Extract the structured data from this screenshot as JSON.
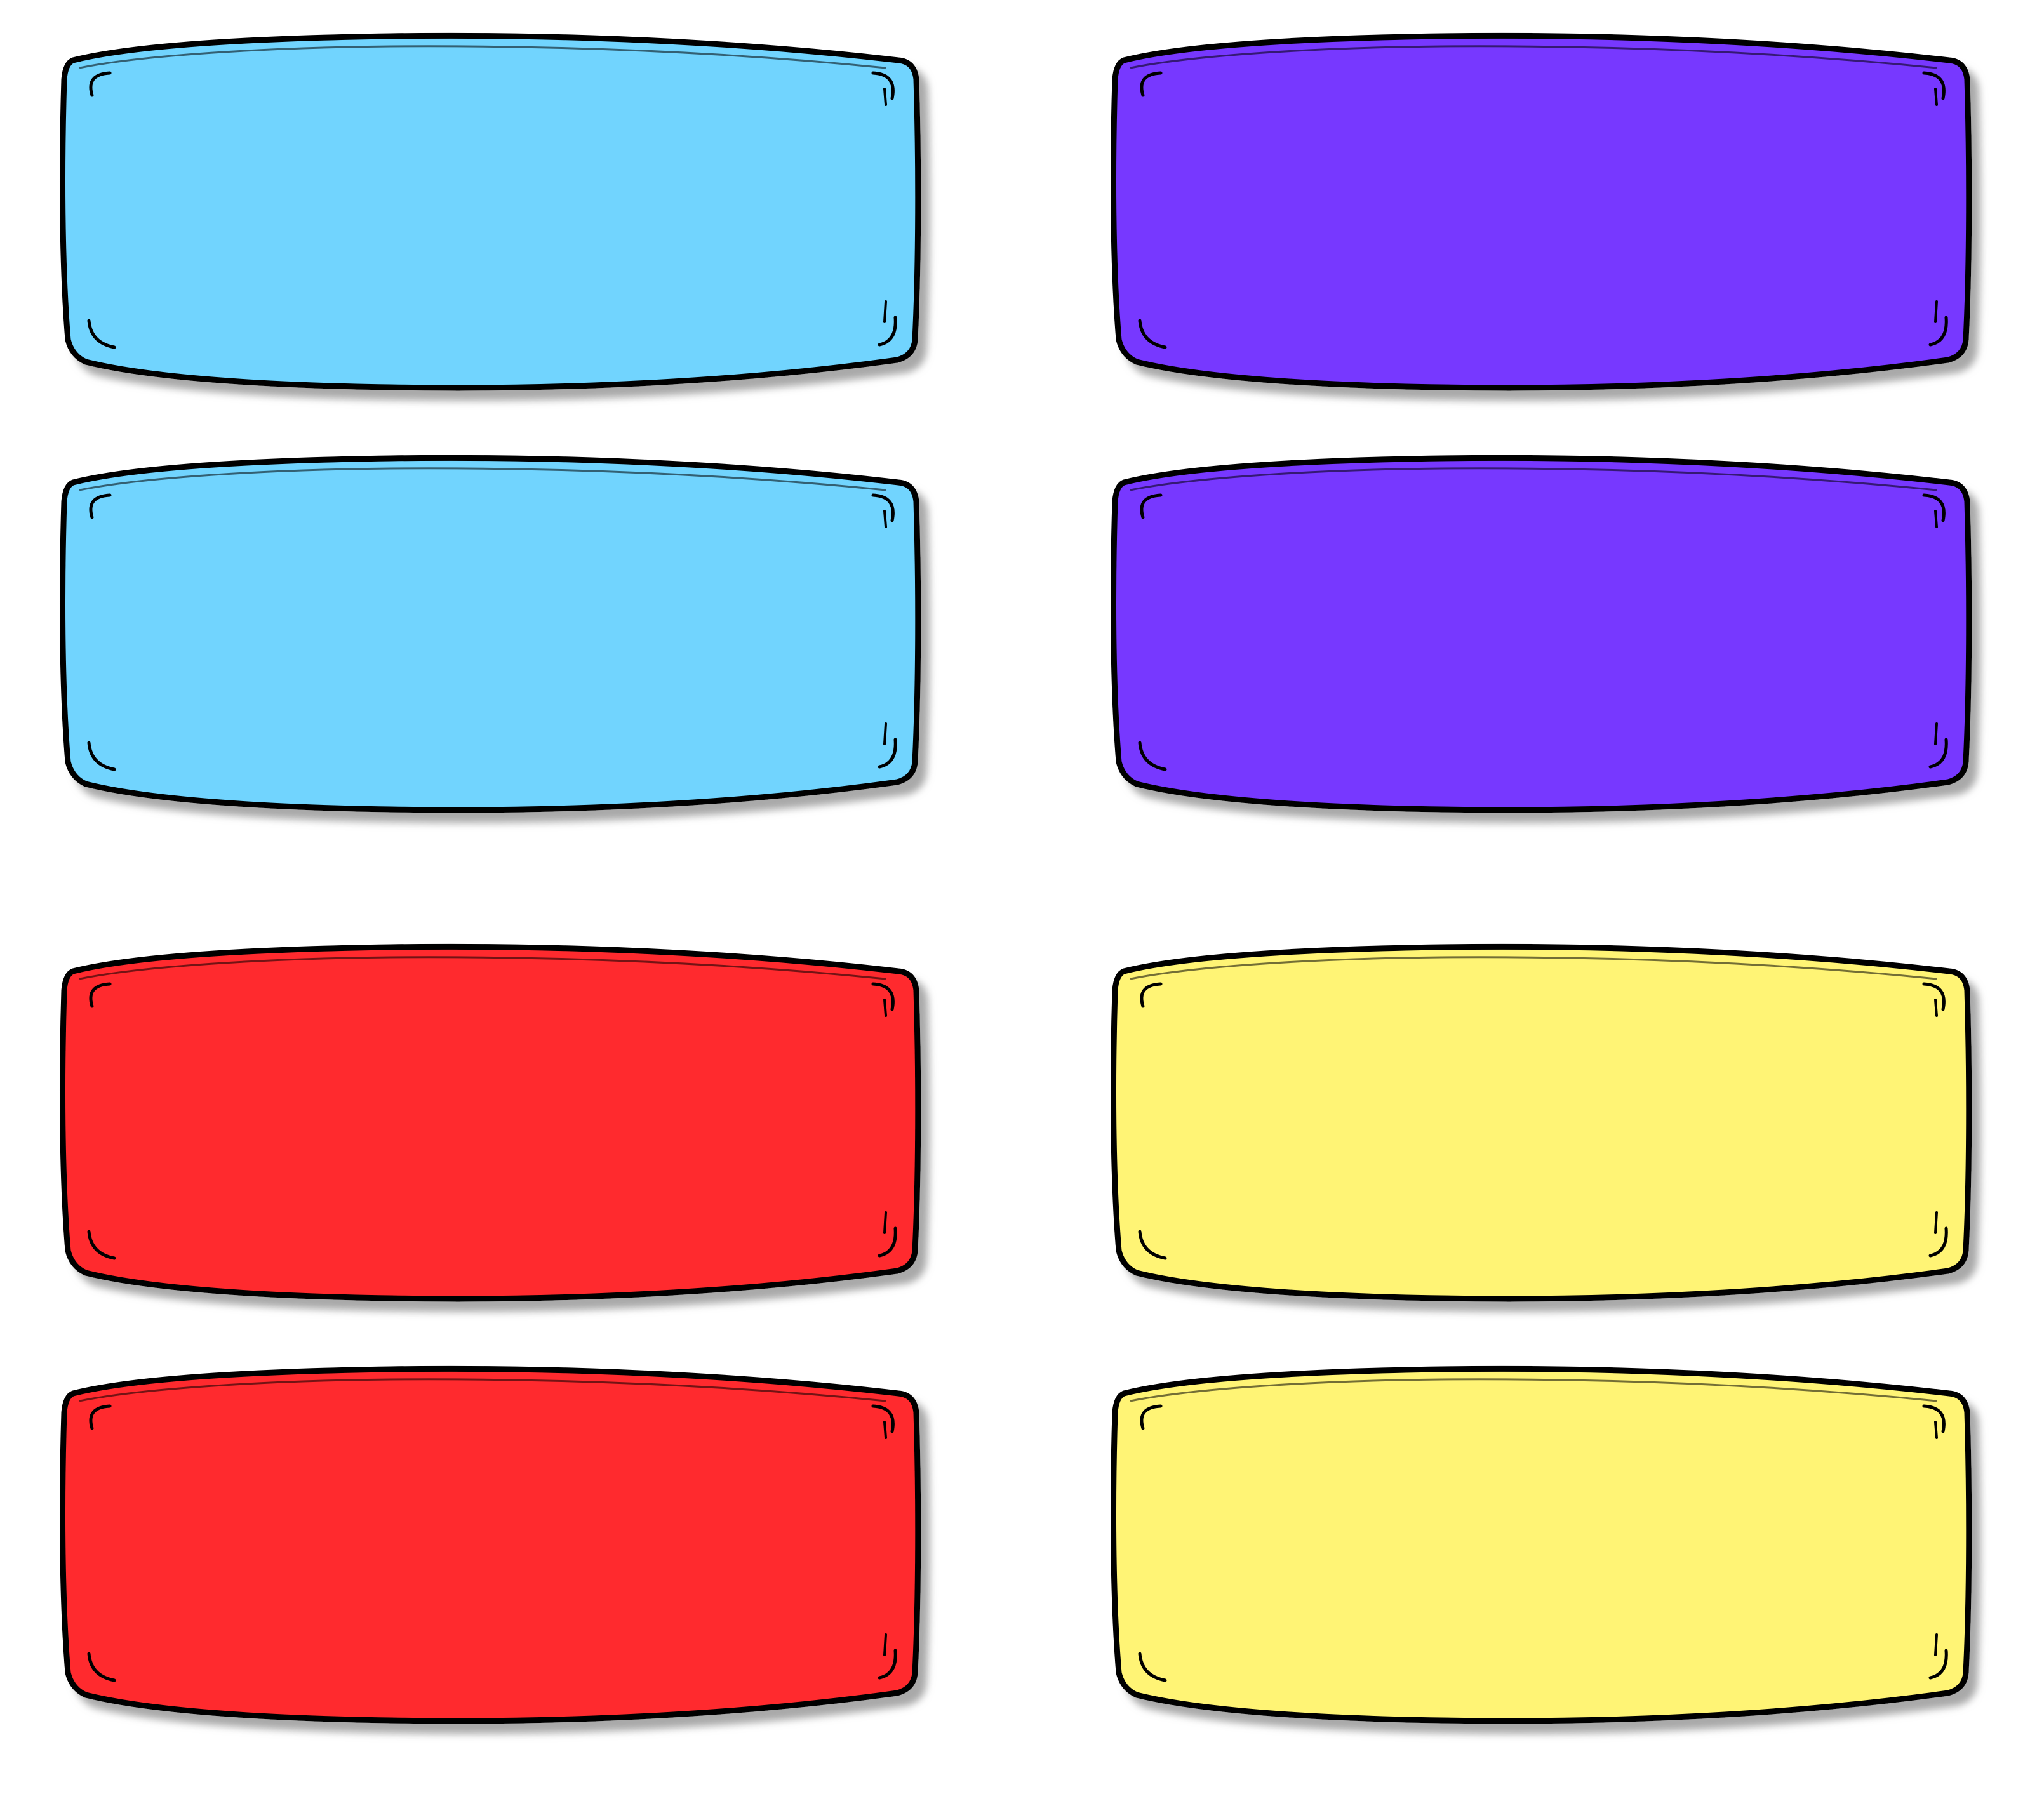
{
  "labels": [
    {
      "id": "blue-label-1",
      "color": "#71D4FE"
    },
    {
      "id": "purple-label-1",
      "color": "#7737FF"
    },
    {
      "id": "blue-label-2",
      "color": "#71D4FE"
    },
    {
      "id": "purple-label-2",
      "color": "#7737FF"
    },
    {
      "id": "red-label-1",
      "color": "#FF2C2F"
    },
    {
      "id": "yellow-label-1",
      "color": "#FFF475"
    },
    {
      "id": "red-label-2",
      "color": "#FF2C2F"
    },
    {
      "id": "yellow-label-2",
      "color": "#FFF475"
    }
  ],
  "outline_color": "#000000",
  "shadow_color": "#9a9a9a",
  "background_color": "#FFFFFF"
}
